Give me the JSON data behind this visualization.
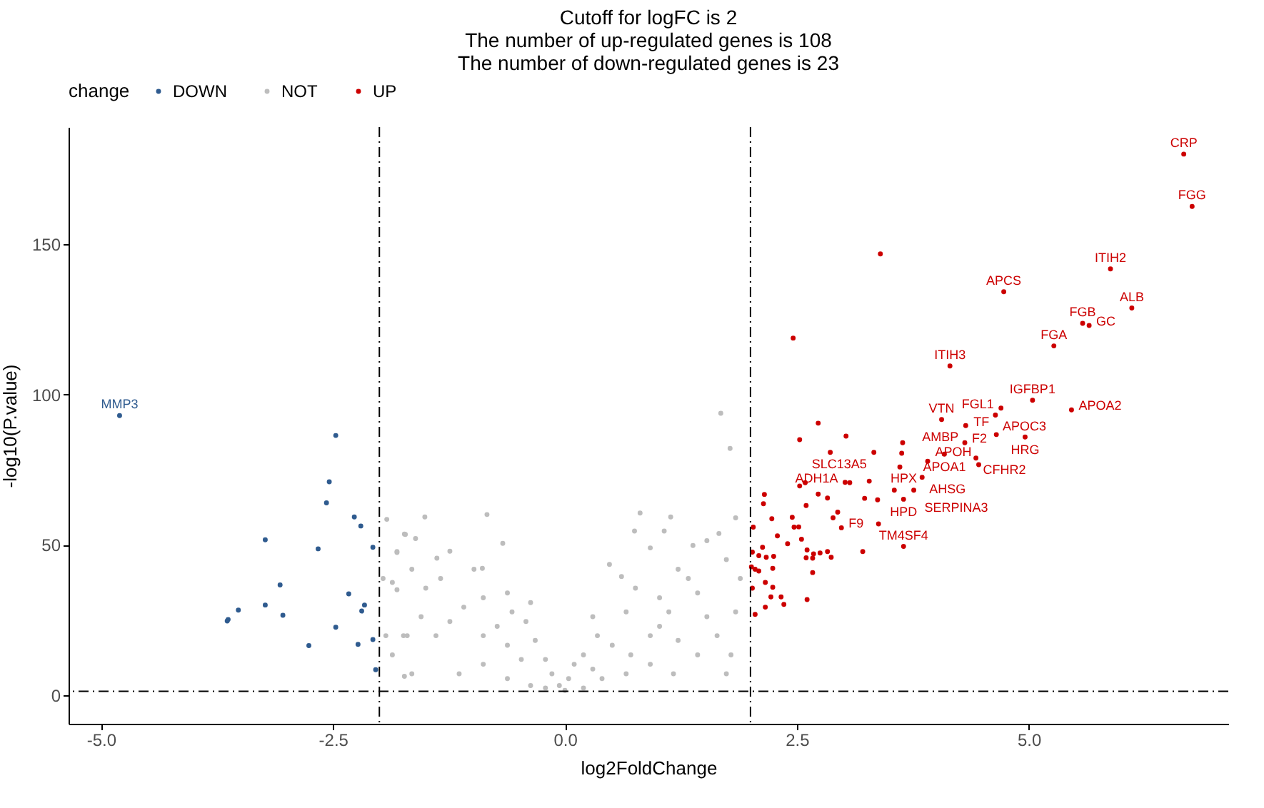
{
  "chart_data": {
    "type": "scatter",
    "title": "Cutoff for logFC is 2\nThe number of up-regulated genes is 108\nThe number of down-regulated genes is 23",
    "xlabel": "log2FoldChange",
    "ylabel": "-log10(P.value)",
    "legend_title": "change",
    "legend": "top",
    "grid": false,
    "marker": "circle",
    "xlim": [
      -5.35,
      7.15
    ],
    "ylim": [
      -9.5,
      189
    ],
    "xticks": [
      {
        "value": -5,
        "label": "-5.0"
      },
      {
        "value": -2.5,
        "label": "-2.5"
      },
      {
        "value": 0,
        "label": "0.0"
      },
      {
        "value": 2.5,
        "label": "2.5"
      },
      {
        "value": 5,
        "label": "5.0"
      }
    ],
    "yticks": [
      0,
      50,
      100,
      150
    ],
    "ref_lines": [
      {
        "axis": "x",
        "value": -2,
        "label": null,
        "color": "#000000",
        "line_style": "dashed"
      },
      {
        "axis": "x",
        "value": 2,
        "label": null,
        "color": "#000000",
        "line_style": "dashed"
      },
      {
        "axis": "y",
        "value": 1.3,
        "label": null,
        "color": "#000000",
        "line_style": "dashed"
      }
    ],
    "series": [
      {
        "name": "DOWN",
        "color": "#2f5b8f",
        "x": [
          -4.8,
          -2.47,
          -2.54,
          -2.57,
          -2.27,
          -2.2,
          -2.07,
          -2.66,
          -3.23,
          -3.07,
          -2.33,
          -2.16,
          -2.19,
          -3.23,
          -3.04,
          -3.52,
          -3.63,
          -3.64,
          -2.47,
          -2.07,
          -2.76,
          -2.23,
          -2.04
        ],
        "values": [
          93,
          86.4,
          71,
          64,
          59.3,
          56.3,
          49.2,
          48.7,
          51.7,
          36.7,
          33.7,
          30,
          28,
          30,
          26.6,
          28.3,
          25.2,
          24.7,
          22.6,
          18.5,
          16.5,
          16.9,
          8.5
        ]
      },
      {
        "name": "NOT",
        "color": "#bdbdbd",
        "x": [
          1.68,
          1.78,
          0.81,
          -0.84,
          -1.51,
          -1.92,
          1.14,
          1.84,
          -0.67,
          0.75,
          1.07,
          -1.73,
          -1.61,
          -1.24,
          -1.38,
          -0.98,
          -0.89,
          -1.81,
          -1.96,
          1.53,
          1.38,
          1.66,
          0.92,
          0.48,
          0.61,
          1.22,
          1.74,
          1.89,
          1.43,
          1.12,
          1.84,
          1.64,
          1.79,
          0.92,
          0.66,
          0.3,
          0.35,
          0.2,
          0.04,
          0.1,
          0,
          -0.06,
          -0.14,
          -0.21,
          -0.32,
          -0.42,
          -0.57,
          -0.62,
          -0.37,
          -0.88,
          -1.09,
          -1.24,
          -1.39,
          -1.55,
          -1.7,
          -1.86,
          -1.93,
          -1.65,
          -1.14,
          -0.88,
          -0.62,
          -0.37,
          -0.21,
          0.2,
          0.4,
          0.66,
          0.92,
          1.17,
          1.43,
          1.74,
          -1.5,
          -1.65,
          -1.34,
          0.76,
          1.02,
          1.33,
          1.53,
          -0.88,
          -0.62,
          -0.47,
          -0.73,
          0.51,
          0.71,
          0.3,
          1.02,
          1.22,
          -1.72,
          -1.81,
          -1.81,
          -1.86,
          -1.74,
          -1.73
        ],
        "values": [
          93.8,
          82.1,
          60.6,
          60.1,
          59.3,
          58.5,
          59.3,
          59,
          50.5,
          54.6,
          54.6,
          53.6,
          52.1,
          47.9,
          45.6,
          41.9,
          42.2,
          47.5,
          38.8,
          51.4,
          49.8,
          53.8,
          49,
          43.5,
          39.5,
          41.9,
          45.1,
          38.8,
          34,
          27.7,
          27.7,
          19.8,
          13.4,
          19.8,
          27.7,
          26.1,
          19.8,
          13.4,
          5.5,
          10.3,
          1.6,
          3.2,
          7.1,
          11.9,
          18.2,
          24.5,
          27.7,
          34,
          30.8,
          32.4,
          29.3,
          24.5,
          19.8,
          26.1,
          19.8,
          13.4,
          19.8,
          7.1,
          7.1,
          10.3,
          5.5,
          3.2,
          2.4,
          2.4,
          5.5,
          7.1,
          10.3,
          7.1,
          13.4,
          7.1,
          35.6,
          41.9,
          38.8,
          35.6,
          32.4,
          38.8,
          26.1,
          19.8,
          16.6,
          11.9,
          22.9,
          16.6,
          13.4,
          8.7,
          22.9,
          18.2,
          53.5,
          47.8,
          35.1,
          37.5,
          19.8,
          6.3
        ]
      },
      {
        "name": "UP",
        "color": "#cc0000",
        "x": [
          6.67,
          6.76,
          3.4,
          2.46,
          4.73,
          5.88,
          6.11,
          5.58,
          5.65,
          5.27,
          4.15,
          5.04,
          4.7,
          4.64,
          5.46,
          4.06,
          4.32,
          4.65,
          4.96,
          4.31,
          4.09,
          4.43,
          4.46,
          3.91,
          3.85,
          3.76,
          3.65,
          3.65,
          3.21,
          3.33,
          2.86,
          3.02,
          2.98,
          2.73,
          2.53,
          3.03,
          3.64,
          3.63,
          3.61,
          2.53,
          2.59,
          2.73,
          2.83,
          3.07,
          3.28,
          3.23,
          3.37,
          3.55,
          2.6,
          2.94,
          2.89,
          3.38,
          2.15,
          2.14,
          2.23,
          2.45,
          2.47,
          2.52,
          2.03,
          2.29,
          2.55,
          2.4,
          2.13,
          2.09,
          2.17,
          2.25,
          2.02,
          2.61,
          2.68,
          2.75,
          2.83,
          2.87,
          2.6,
          2.67,
          2.01,
          2.05,
          2.09,
          2.24,
          2.67,
          2.02,
          2.16,
          2.24,
          2.22,
          2.33,
          2.36,
          2.61,
          2.16,
          2.05
        ],
        "values": [
          180,
          162.6,
          146.8,
          118.8,
          134.2,
          141.8,
          128.8,
          123.7,
          123,
          116.2,
          109.5,
          98.1,
          95.5,
          93.2,
          94.9,
          91.7,
          89.7,
          86.7,
          85.9,
          84,
          80.2,
          78.9,
          76.7,
          77.8,
          72.5,
          68.2,
          65.2,
          49.5,
          47.8,
          80.8,
          80.8,
          70.8,
          55.7,
          90.5,
          85,
          86.2,
          84,
          80.5,
          75.9,
          69.6,
          70.7,
          66.9,
          65.6,
          70.7,
          71.2,
          65.5,
          65,
          68.2,
          63.1,
          60.9,
          59,
          57,
          66.8,
          63.7,
          58.7,
          59.2,
          55.9,
          56,
          55.9,
          53,
          51.9,
          50.4,
          49.2,
          46.4,
          45.9,
          46.2,
          47.6,
          48.3,
          47,
          47.3,
          47.8,
          45.9,
          45.7,
          45.6,
          42.7,
          41.9,
          41.3,
          42.2,
          40.8,
          35.6,
          37.5,
          35.9,
          32.7,
          32.7,
          30.2,
          31.8,
          29.3,
          26.9
        ]
      }
    ],
    "annotations": [
      {
        "text": "CRP",
        "x": 6.67,
        "y": 180
      },
      {
        "text": "FGG",
        "x": 6.76,
        "y": 162.6
      },
      {
        "text": "APCS",
        "x": 4.73,
        "y": 134.2
      },
      {
        "text": "ITIH2",
        "x": 5.88,
        "y": 141.8
      },
      {
        "text": "FGB",
        "x": 5.58,
        "y": 123.7
      },
      {
        "text": "ALB",
        "x": 6.11,
        "y": 128.8
      },
      {
        "text": "GC",
        "x": 5.65,
        "y": 123
      },
      {
        "text": "FGA",
        "x": 5.27,
        "y": 116.2
      },
      {
        "text": "ITIH3",
        "x": 4.15,
        "y": 109.5
      },
      {
        "text": "IGFBP1",
        "x": 5.04,
        "y": 98.1
      },
      {
        "text": "VTN",
        "x": 4.06,
        "y": 91.7
      },
      {
        "text": "APOC3",
        "x": 4.64,
        "y": 93.2
      },
      {
        "text": "FGL1",
        "x": 4.7,
        "y": 95.5
      },
      {
        "text": "AMBP",
        "x": 4.32,
        "y": 89.7
      },
      {
        "text": "F2",
        "x": 4.31,
        "y": 84
      },
      {
        "text": "APOA2",
        "x": 5.46,
        "y": 94.9
      },
      {
        "text": "TF",
        "x": 4.65,
        "y": 86.7
      },
      {
        "text": "HRG",
        "x": 4.96,
        "y": 85.9
      },
      {
        "text": "SLC13A5",
        "x": 3.33,
        "y": 80.8
      },
      {
        "text": "APOA1",
        "x": 4.09,
        "y": 80.2
      },
      {
        "text": "CFHR2",
        "x": 4.43,
        "y": 78.9
      },
      {
        "text": "HPX",
        "x": 3.91,
        "y": 77.8
      },
      {
        "text": "AHSG",
        "x": 3.85,
        "y": 72.5
      },
      {
        "text": "APOH",
        "x": 4.46,
        "y": 76.7
      },
      {
        "text": "ADH1A",
        "x": 3.02,
        "y": 70.8
      },
      {
        "text": "SERPINA3",
        "x": 3.76,
        "y": 68.2
      },
      {
        "text": "HPD",
        "x": 3.65,
        "y": 65.2
      },
      {
        "text": "F9",
        "x": 2.98,
        "y": 55.7
      },
      {
        "text": "TM4SF4",
        "x": 3.65,
        "y": 49.5
      },
      {
        "text": "MMP3",
        "x": -4.8,
        "y": 93
      }
    ]
  }
}
